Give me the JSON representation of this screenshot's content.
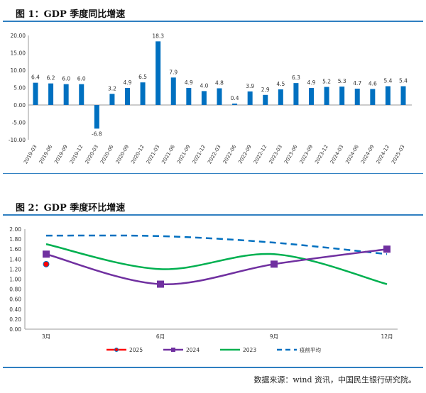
{
  "chart_data": [
    {
      "type": "bar",
      "title": "图 1：GDP 季度同比增速",
      "categories": [
        "2019-03",
        "2019-06",
        "2019-09",
        "2019-12",
        "2020-03",
        "2020-06",
        "2020-09",
        "2020-12",
        "2021-03",
        "2021-06",
        "2021-09",
        "2021-12",
        "2022-03",
        "2022-06",
        "2022-09",
        "2022-12",
        "2023-03",
        "2023-06",
        "2023-09",
        "2023-12",
        "2024-03",
        "2024-06",
        "2024-09",
        "2024-12",
        "2025-03"
      ],
      "values": [
        6.4,
        6.2,
        6.0,
        6.0,
        -6.8,
        3.2,
        4.9,
        6.5,
        18.3,
        7.9,
        4.9,
        4.0,
        4.8,
        0.4,
        3.9,
        2.9,
        4.5,
        6.3,
        4.9,
        5.2,
        5.3,
        4.7,
        4.6,
        5.4,
        5.4
      ],
      "yticks": [
        "20.00",
        "15.00",
        "10.00",
        "5.00",
        "0.00",
        "-5.00",
        "-10.00"
      ],
      "ylim": [
        -10,
        20
      ],
      "color": "#0070c0",
      "grid": false
    },
    {
      "type": "line",
      "title": "图 2：GDP 季度环比增速",
      "categories": [
        "3月",
        "6月",
        "9月",
        "12月"
      ],
      "yticks": [
        "2.00",
        "1.80",
        "1.60",
        "1.40",
        "1.20",
        "1.00",
        "0.80",
        "0.60",
        "0.40",
        "0.20",
        "0.00"
      ],
      "ylim": [
        0,
        2
      ],
      "legend": "bottom",
      "grid": false,
      "series": [
        {
          "name": "2025",
          "values": [
            1.3,
            null,
            null,
            null
          ],
          "color": "#ff0000",
          "marker": "circle"
        },
        {
          "name": "2024",
          "values": [
            1.5,
            0.9,
            1.3,
            1.6
          ],
          "color": "#7030a0",
          "marker": "square"
        },
        {
          "name": "2023",
          "values": [
            1.7,
            1.2,
            1.5,
            0.9
          ],
          "color": "#00b050",
          "marker": "none"
        },
        {
          "name": "疫前平均",
          "values": [
            1.87,
            1.86,
            1.73,
            1.5
          ],
          "color": "#0070c0",
          "dash": true
        }
      ]
    }
  ],
  "source": "数据来源：wind 资讯，中国民生银行研究院。"
}
